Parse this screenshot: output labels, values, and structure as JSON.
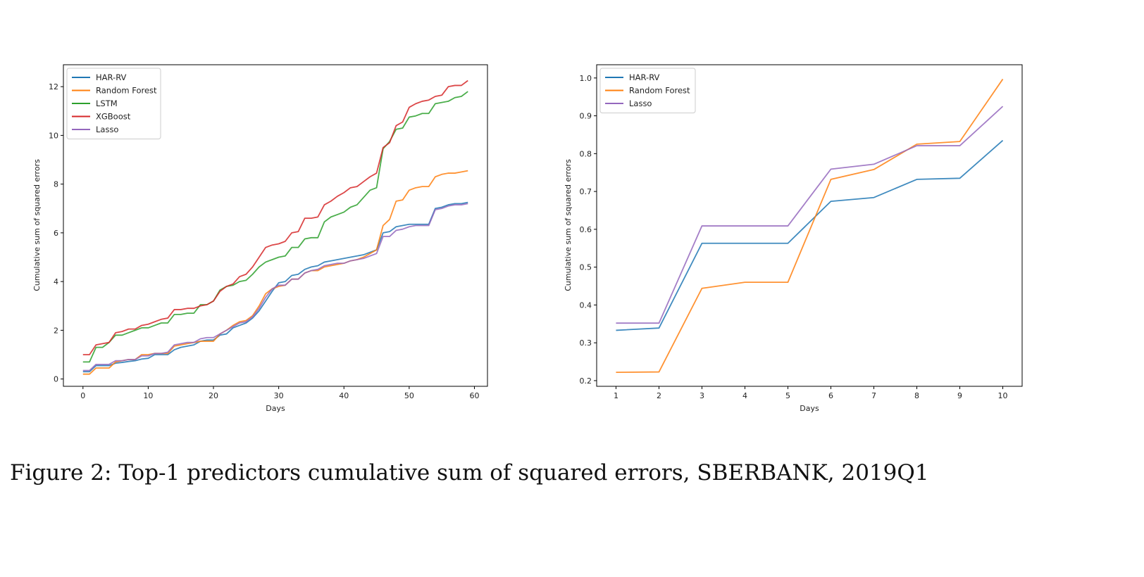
{
  "caption": "Figure 2: Top-1 predictors cumulative sum of squared errors, SBERBANK, 2019Q1",
  "chart_data": [
    {
      "type": "line",
      "xlabel": "Days",
      "ylabel": "Cumulative sum of squared errors",
      "xlim": [
        -3,
        62
      ],
      "ylim": [
        -0.3,
        12.9
      ],
      "xticks": [
        0,
        10,
        20,
        30,
        40,
        50,
        60
      ],
      "yticks": [
        0,
        2,
        4,
        6,
        8,
        10,
        12
      ],
      "legend_position": "top-left",
      "x": [
        0,
        1,
        2,
        3,
        4,
        5,
        6,
        7,
        8,
        9,
        10,
        11,
        12,
        13,
        14,
        15,
        16,
        17,
        18,
        19,
        20,
        21,
        22,
        23,
        24,
        25,
        26,
        27,
        28,
        29,
        30,
        31,
        32,
        33,
        34,
        35,
        36,
        37,
        38,
        39,
        40,
        41,
        42,
        43,
        44,
        45,
        46,
        47,
        48,
        49,
        50,
        51,
        52,
        53,
        54,
        55,
        56,
        57,
        58,
        59
      ],
      "series": [
        {
          "name": "HAR-RV",
          "color": "#1f77b4",
          "values": [
            0.3,
            0.3,
            0.55,
            0.55,
            0.55,
            0.65,
            0.68,
            0.72,
            0.75,
            0.82,
            0.85,
            1.0,
            1.0,
            1.0,
            1.2,
            1.3,
            1.35,
            1.4,
            1.55,
            1.6,
            1.6,
            1.8,
            1.85,
            2.1,
            2.2,
            2.3,
            2.5,
            2.8,
            3.2,
            3.6,
            3.95,
            4.0,
            4.25,
            4.3,
            4.5,
            4.6,
            4.65,
            4.8,
            4.85,
            4.9,
            4.95,
            5.0,
            5.05,
            5.1,
            5.2,
            5.3,
            6.0,
            6.05,
            6.25,
            6.3,
            6.35,
            6.35,
            6.35,
            6.35,
            7.0,
            7.05,
            7.15,
            7.2,
            7.2,
            7.25
          ]
        },
        {
          "name": "Random Forest",
          "color": "#ff7f0e",
          "values": [
            0.2,
            0.2,
            0.45,
            0.45,
            0.45,
            0.7,
            0.75,
            0.8,
            0.8,
            1.0,
            1.0,
            1.05,
            1.05,
            1.05,
            1.35,
            1.4,
            1.45,
            1.5,
            1.55,
            1.55,
            1.55,
            1.85,
            2.0,
            2.2,
            2.35,
            2.4,
            2.6,
            3.0,
            3.5,
            3.7,
            3.8,
            3.85,
            4.1,
            4.1,
            4.35,
            4.45,
            4.45,
            4.6,
            4.65,
            4.7,
            4.75,
            4.85,
            4.9,
            5.0,
            5.15,
            5.3,
            6.3,
            6.55,
            7.3,
            7.35,
            7.75,
            7.85,
            7.9,
            7.9,
            8.3,
            8.4,
            8.45,
            8.45,
            8.5,
            8.55
          ]
        },
        {
          "name": "LSTM",
          "color": "#2ca02c",
          "values": [
            0.7,
            0.7,
            1.3,
            1.3,
            1.5,
            1.8,
            1.8,
            1.9,
            2.0,
            2.1,
            2.1,
            2.2,
            2.3,
            2.3,
            2.65,
            2.65,
            2.7,
            2.7,
            3.05,
            3.05,
            3.2,
            3.65,
            3.8,
            3.85,
            4.0,
            4.05,
            4.3,
            4.6,
            4.8,
            4.9,
            5.0,
            5.05,
            5.4,
            5.4,
            5.75,
            5.8,
            5.8,
            6.45,
            6.65,
            6.75,
            6.85,
            7.05,
            7.15,
            7.45,
            7.75,
            7.85,
            9.45,
            9.75,
            10.25,
            10.3,
            10.75,
            10.8,
            10.9,
            10.9,
            11.3,
            11.35,
            11.4,
            11.55,
            11.6,
            11.8
          ]
        },
        {
          "name": "XGBoost",
          "color": "#d62728",
          "values": [
            1.0,
            1.0,
            1.4,
            1.45,
            1.5,
            1.9,
            1.95,
            2.05,
            2.05,
            2.2,
            2.25,
            2.35,
            2.45,
            2.5,
            2.85,
            2.85,
            2.9,
            2.9,
            3.0,
            3.05,
            3.2,
            3.6,
            3.8,
            3.9,
            4.2,
            4.3,
            4.6,
            5.0,
            5.4,
            5.5,
            5.55,
            5.65,
            6.0,
            6.05,
            6.6,
            6.6,
            6.65,
            7.15,
            7.3,
            7.5,
            7.65,
            7.85,
            7.9,
            8.1,
            8.3,
            8.45,
            9.5,
            9.7,
            10.4,
            10.55,
            11.15,
            11.3,
            11.4,
            11.45,
            11.6,
            11.65,
            12.0,
            12.05,
            12.05,
            12.25
          ]
        },
        {
          "name": "Lasso",
          "color": "#9467bd",
          "values": [
            0.35,
            0.35,
            0.6,
            0.6,
            0.6,
            0.75,
            0.75,
            0.8,
            0.8,
            0.95,
            0.95,
            1.05,
            1.05,
            1.1,
            1.4,
            1.45,
            1.5,
            1.5,
            1.65,
            1.7,
            1.7,
            1.85,
            2.0,
            2.15,
            2.3,
            2.35,
            2.55,
            2.9,
            3.35,
            3.7,
            3.85,
            3.85,
            4.1,
            4.1,
            4.35,
            4.45,
            4.5,
            4.65,
            4.7,
            4.75,
            4.75,
            4.85,
            4.9,
            4.95,
            5.05,
            5.15,
            5.85,
            5.85,
            6.1,
            6.15,
            6.25,
            6.3,
            6.3,
            6.3,
            6.95,
            7.0,
            7.1,
            7.15,
            7.15,
            7.2
          ]
        }
      ]
    },
    {
      "type": "line",
      "xlabel": "Days",
      "ylabel": "Cumulative sum of squared errors",
      "xlim": [
        0.55,
        10.45
      ],
      "ylim": [
        0.185,
        1.035
      ],
      "xticks": [
        1,
        2,
        3,
        4,
        5,
        6,
        7,
        8,
        9,
        10
      ],
      "yticks": [
        0.2,
        0.3,
        0.4,
        0.5,
        0.6,
        0.7,
        0.8,
        0.9,
        1.0
      ],
      "legend_position": "top-left",
      "x": [
        1,
        2,
        3,
        4,
        5,
        6,
        7,
        8,
        9,
        10
      ],
      "series": [
        {
          "name": "HAR-RV",
          "color": "#1f77b4",
          "values": [
            0.333,
            0.339,
            0.563,
            0.563,
            0.563,
            0.674,
            0.684,
            0.732,
            0.735,
            0.835
          ]
        },
        {
          "name": "Random Forest",
          "color": "#ff7f0e",
          "values": [
            0.222,
            0.223,
            0.444,
            0.46,
            0.46,
            0.732,
            0.758,
            0.825,
            0.832,
            0.997
          ]
        },
        {
          "name": "Lasso",
          "color": "#9467bd",
          "values": [
            0.352,
            0.352,
            0.609,
            0.609,
            0.609,
            0.759,
            0.772,
            0.821,
            0.821,
            0.925
          ]
        }
      ]
    }
  ]
}
